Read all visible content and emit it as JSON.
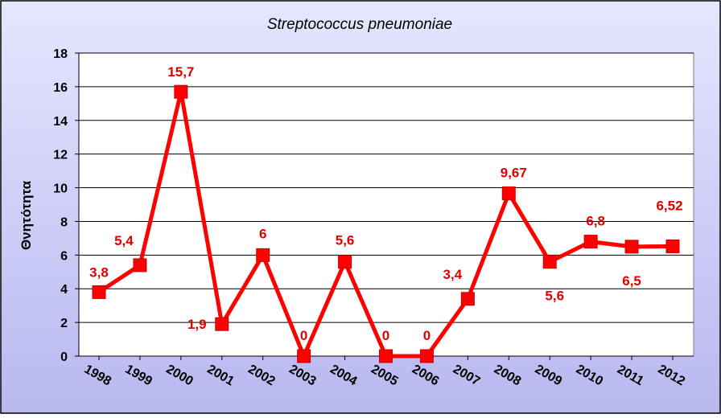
{
  "chart_data": {
    "type": "line",
    "title": "Streptococcus pneumoniae",
    "xlabel": "",
    "ylabel": "Θνητότητα",
    "x": [
      "1998",
      "1999",
      "2000",
      "2001",
      "2002",
      "2003",
      "2004",
      "2005",
      "2006",
      "2007",
      "2008",
      "2009",
      "2010",
      "2011",
      "2012"
    ],
    "series": [
      {
        "values": [
          3.8,
          5.4,
          15.7,
          1.9,
          6,
          0,
          5.6,
          0,
          0,
          3.4,
          9.67,
          5.6,
          6.8,
          6.5,
          6.52
        ],
        "data_labels": [
          "3,8",
          "5,4",
          "15,7",
          "1,9",
          "6",
          "0",
          "5,6",
          "0",
          "0",
          "3,4",
          "9,67",
          "5,6",
          "6,8",
          "6,5",
          "6,52"
        ]
      }
    ],
    "ylim": [
      0,
      18
    ],
    "yticks": [
      0,
      2,
      4,
      6,
      8,
      10,
      12,
      14,
      16,
      18
    ],
    "grid": "horizontal",
    "legend": "none",
    "colors": {
      "line": "#ff0000",
      "marker": "#ff0000",
      "label": "#e00000",
      "plot_background": "#ffffff",
      "chart_background": "#ccccff",
      "grid": "#000000"
    }
  }
}
